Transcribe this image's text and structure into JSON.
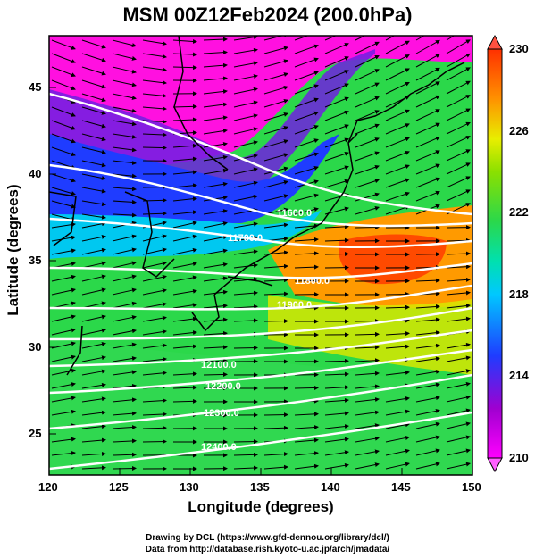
{
  "title": "MSM 00Z12Feb2024 (200.0hPa)",
  "xlabel": "Longitude (degrees)",
  "ylabel": "Latitude  (degrees)",
  "x_ticks": [
    "120",
    "125",
    "130",
    "135",
    "140",
    "145",
    "150"
  ],
  "y_ticks": [
    "25",
    "30",
    "35",
    "40",
    "45"
  ],
  "colorbar_ticks": [
    "230",
    "226",
    "222",
    "218",
    "214",
    "210"
  ],
  "contour_labels": [
    "11600.0",
    "11700.0",
    "11800.0",
    "11900.0",
    "12100.0",
    "12200.0",
    "12300.0",
    "12400.0"
  ],
  "footer": {
    "line1": "Drawing by DCL (https://www.gfd-dennou.org/library/dcl/)",
    "line2": "Data from http://database.rish.kyoto-u.ac.jp/arch/jmadata/"
  },
  "colors": {
    "magenta": "#ff00ff",
    "blue": "#1f3cff",
    "cyan": "#00e0e0",
    "green": "#2bd84a",
    "yellow": "#e8ee00",
    "orange": "#ff8a00",
    "red": "#ff2a00"
  }
}
